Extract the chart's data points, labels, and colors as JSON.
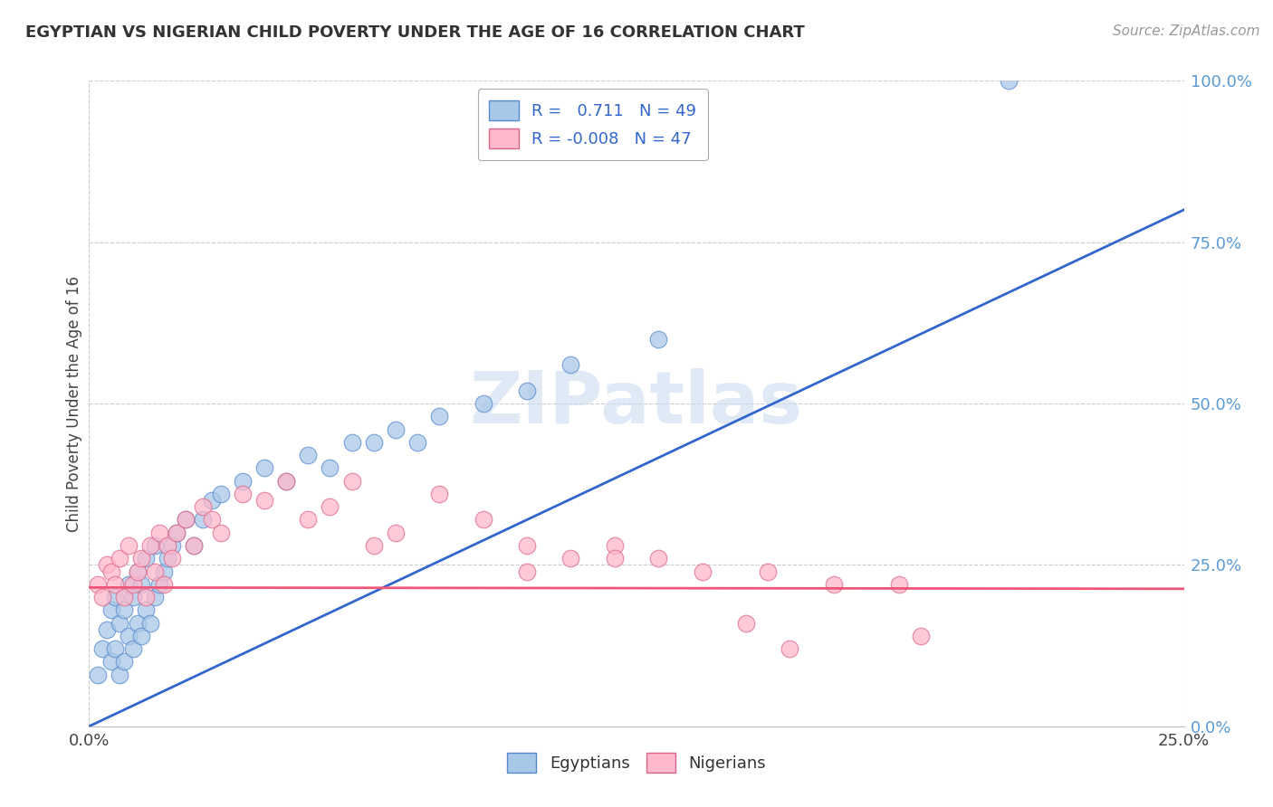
{
  "title": "EGYPTIAN VS NIGERIAN CHILD POVERTY UNDER THE AGE OF 16 CORRELATION CHART",
  "source": "Source: ZipAtlas.com",
  "ylabel": "Child Poverty Under the Age of 16",
  "xlim": [
    0,
    0.25
  ],
  "ylim": [
    0,
    1.0
  ],
  "ytick_values": [
    0.0,
    0.25,
    0.5,
    0.75,
    1.0
  ],
  "xtick_values": [
    0.0,
    0.25
  ],
  "bg_color": "#ffffff",
  "grid_color": "#cccccc",
  "watermark": "ZIPatlas",
  "blue_color": "#A8C8E8",
  "pink_color": "#FFB8CC",
  "blue_edge_color": "#5588CC",
  "pink_edge_color": "#DD6688",
  "blue_line_color": "#3366CC",
  "pink_line_color": "#EE5577",
  "egyptians_scatter_x": [
    0.002,
    0.003,
    0.004,
    0.005,
    0.005,
    0.006,
    0.006,
    0.007,
    0.007,
    0.008,
    0.008,
    0.009,
    0.009,
    0.01,
    0.01,
    0.011,
    0.011,
    0.012,
    0.012,
    0.013,
    0.013,
    0.014,
    0.015,
    0.015,
    0.016,
    0.017,
    0.018,
    0.019,
    0.02,
    0.022,
    0.024,
    0.026,
    0.028,
    0.03,
    0.035,
    0.04,
    0.045,
    0.05,
    0.055,
    0.06,
    0.065,
    0.07,
    0.075,
    0.08,
    0.09,
    0.1,
    0.11,
    0.13,
    0.21
  ],
  "egyptians_scatter_y": [
    0.08,
    0.12,
    0.15,
    0.1,
    0.18,
    0.12,
    0.2,
    0.08,
    0.16,
    0.1,
    0.18,
    0.14,
    0.22,
    0.12,
    0.2,
    0.16,
    0.24,
    0.14,
    0.22,
    0.18,
    0.26,
    0.16,
    0.2,
    0.28,
    0.22,
    0.24,
    0.26,
    0.28,
    0.3,
    0.32,
    0.28,
    0.32,
    0.35,
    0.36,
    0.38,
    0.4,
    0.38,
    0.42,
    0.4,
    0.44,
    0.44,
    0.46,
    0.44,
    0.48,
    0.5,
    0.52,
    0.56,
    0.6,
    1.0
  ],
  "nigerians_scatter_x": [
    0.002,
    0.003,
    0.004,
    0.005,
    0.006,
    0.007,
    0.008,
    0.009,
    0.01,
    0.011,
    0.012,
    0.013,
    0.014,
    0.015,
    0.016,
    0.017,
    0.018,
    0.019,
    0.02,
    0.022,
    0.024,
    0.026,
    0.028,
    0.03,
    0.035,
    0.04,
    0.045,
    0.05,
    0.055,
    0.06,
    0.065,
    0.07,
    0.08,
    0.09,
    0.1,
    0.11,
    0.12,
    0.13,
    0.14,
    0.155,
    0.17,
    0.185,
    0.1,
    0.12,
    0.16,
    0.19,
    0.15
  ],
  "nigerians_scatter_y": [
    0.22,
    0.2,
    0.25,
    0.24,
    0.22,
    0.26,
    0.2,
    0.28,
    0.22,
    0.24,
    0.26,
    0.2,
    0.28,
    0.24,
    0.3,
    0.22,
    0.28,
    0.26,
    0.3,
    0.32,
    0.28,
    0.34,
    0.32,
    0.3,
    0.36,
    0.35,
    0.38,
    0.32,
    0.34,
    0.38,
    0.28,
    0.3,
    0.36,
    0.32,
    0.28,
    0.26,
    0.28,
    0.26,
    0.24,
    0.24,
    0.22,
    0.22,
    0.24,
    0.26,
    0.12,
    0.14,
    0.16
  ],
  "blue_line_x": [
    0.0,
    0.25
  ],
  "blue_line_y": [
    0.0,
    0.8
  ],
  "pink_line_x": [
    0.0,
    0.25
  ],
  "pink_line_y": [
    0.215,
    0.213
  ]
}
